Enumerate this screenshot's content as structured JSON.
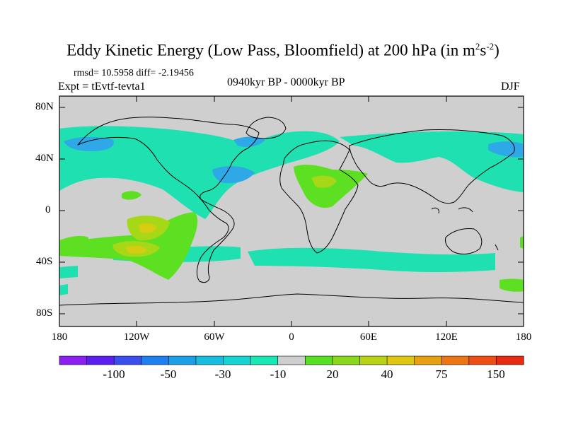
{
  "title": {
    "main": "Eddy Kinetic Energy (Low Pass, Bloomfield) at 200 hPa (in m",
    "sup1": "2",
    "mid": "s",
    "sup2": "-2",
    "close": ")"
  },
  "stats": "rmsd= 10.5958 diff= -2.19456",
  "experiment": "Expt = tEvtf-tevta1",
  "period": "0940kyr BP - 0000kyr BP",
  "season": "DJF",
  "y_axis": {
    "labels": [
      "80N",
      "40N",
      "0",
      "40S",
      "80S"
    ]
  },
  "x_axis": {
    "labels": [
      "180",
      "120W",
      "60W",
      "0",
      "60E",
      "120E",
      "180"
    ]
  },
  "colorbar": {
    "colors": [
      "#8c1ff0",
      "#5a1ef0",
      "#3a4ef0",
      "#1e7ff0",
      "#19a0e8",
      "#16bde0",
      "#14d4d4",
      "#18e8b4",
      "#cfcfcf",
      "#55e020",
      "#8ad81a",
      "#b8d214",
      "#e0c810",
      "#e8a010",
      "#ec7412",
      "#ee4e14",
      "#e82a10"
    ],
    "labels": [
      "-100",
      "-50",
      "-30",
      "-10",
      "20",
      "40",
      "75",
      "150"
    ]
  },
  "colors": {
    "land_ocean_bg": "#cfcfcf",
    "teal": "#1ee0b0",
    "cyan": "#18c4d8",
    "blue": "#2ea8e6",
    "green": "#5ee022",
    "lime": "#a6d818",
    "yellow": "#d6cc12",
    "coast": "#000000"
  }
}
